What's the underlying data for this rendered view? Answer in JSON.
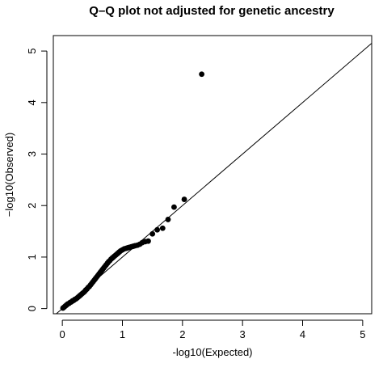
{
  "chart_data": {
    "type": "scatter",
    "title": "Q–Q plot not adjusted for genetic ancestry",
    "xlabel": "-log10(Expected)",
    "ylabel": "−log10(Observed)",
    "xlim": [
      -0.15,
      5.15
    ],
    "ylim": [
      -0.1,
      5.3
    ],
    "xticks": [
      0,
      1,
      2,
      3,
      4,
      5
    ],
    "yticks": [
      0,
      1,
      2,
      3,
      4,
      5
    ],
    "reference_line": "y = x",
    "grid": false,
    "legend": "none",
    "series": [
      {
        "x": [
          0.01,
          0.03,
          0.05,
          0.07,
          0.09,
          0.11,
          0.13,
          0.15,
          0.17,
          0.19,
          0.21,
          0.23,
          0.25,
          0.27,
          0.29,
          0.31,
          0.33,
          0.35,
          0.37,
          0.39,
          0.41,
          0.43,
          0.45,
          0.47,
          0.49,
          0.51,
          0.53,
          0.55,
          0.57,
          0.59,
          0.61,
          0.63,
          0.65,
          0.67,
          0.69,
          0.71,
          0.73,
          0.75,
          0.77,
          0.79,
          0.81,
          0.83,
          0.85,
          0.87,
          0.89,
          0.91,
          0.93,
          0.95,
          0.97,
          1.0,
          1.03,
          1.06,
          1.09,
          1.12,
          1.15,
          1.18,
          1.21,
          1.25,
          1.29,
          1.33,
          1.38,
          1.43,
          1.5,
          1.58,
          1.67,
          1.76,
          1.86,
          2.03,
          2.32
        ],
        "y": [
          0.01,
          0.03,
          0.05,
          0.07,
          0.09,
          0.1,
          0.12,
          0.13,
          0.15,
          0.16,
          0.18,
          0.19,
          0.21,
          0.23,
          0.25,
          0.27,
          0.29,
          0.31,
          0.33,
          0.36,
          0.38,
          0.41,
          0.43,
          0.46,
          0.49,
          0.52,
          0.55,
          0.58,
          0.61,
          0.64,
          0.67,
          0.7,
          0.73,
          0.76,
          0.79,
          0.82,
          0.85,
          0.88,
          0.91,
          0.93,
          0.96,
          0.98,
          1.0,
          1.02,
          1.04,
          1.06,
          1.08,
          1.1,
          1.12,
          1.14,
          1.16,
          1.17,
          1.18,
          1.19,
          1.2,
          1.21,
          1.22,
          1.23,
          1.25,
          1.28,
          1.3,
          1.31,
          1.45,
          1.53,
          1.56,
          1.73,
          1.97,
          2.12,
          4.55
        ]
      }
    ]
  }
}
